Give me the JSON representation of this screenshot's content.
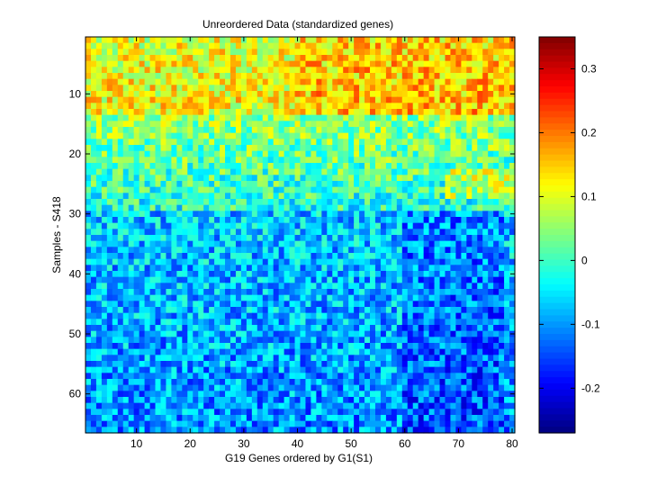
{
  "chart_data": {
    "type": "heatmap",
    "title": "Unreordered Data (standardized genes)",
    "xlabel": "G19 Genes ordered by G1(S1)",
    "ylabel": "Samples - S418",
    "x_range": [
      1,
      80
    ],
    "y_range": [
      1,
      66
    ],
    "x_ticks": [
      10,
      20,
      30,
      40,
      50,
      60,
      70,
      80
    ],
    "y_ticks": [
      10,
      20,
      30,
      40,
      50,
      60
    ],
    "y_axis_direction": "top-to-bottom",
    "n_genes": 80,
    "n_samples": 66,
    "colormap": "jet",
    "color_range": [
      -0.27,
      0.35
    ],
    "colorbar_ticks": [
      -0.2,
      -0.1,
      0,
      0.1,
      0.2,
      0.3
    ],
    "colorbar_tick_labels": [
      "-0.2",
      "-0.1",
      "0",
      "0.1",
      "0.2",
      "0.3"
    ],
    "value_summary": [
      {
        "rows": "1-13",
        "description": "mostly high values (~0.05 to 0.3), hot spots near genes 40-80 and rows 8-13"
      },
      {
        "rows": "14-29",
        "description": "moderate values (~-0.05 to 0.12)"
      },
      {
        "rows": "30-66",
        "description": "mostly low values (~-0.2 to 0.0), darkest near genes 60-78"
      }
    ],
    "grid": false,
    "legend": "colorbar-right"
  }
}
